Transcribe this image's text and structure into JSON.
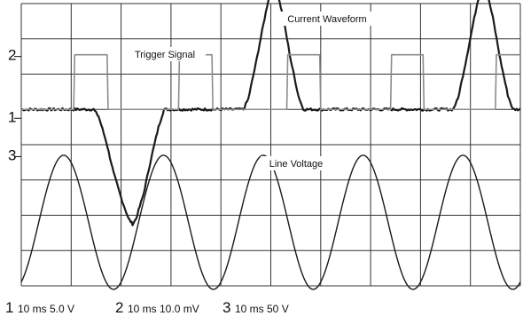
{
  "chart_data": {
    "type": "line",
    "title": "",
    "xlabel": "",
    "ylabel": "",
    "grid": true,
    "grid_divisions": {
      "horizontal": 10,
      "vertical": 8
    },
    "x": {
      "unit": "ms",
      "range": [
        0,
        100
      ],
      "per_division": 10
    },
    "channel_markers": [
      "2",
      "1",
      "3"
    ],
    "settings": [
      {
        "channel": "1",
        "text": "10 ms 5.0 V"
      },
      {
        "channel": "2",
        "text": "10 ms 10.0 mV"
      },
      {
        "channel": "3",
        "text": "10 ms 50 V"
      }
    ],
    "series": [
      {
        "name": "Current Waveform",
        "channel": "1",
        "color": "#1a1a1a",
        "baseline_div": 5.0,
        "y_unit": "div",
        "points": [
          [
            0,
            0
          ],
          [
            14.5,
            0
          ],
          [
            15.5,
            -0.2
          ],
          [
            17,
            -0.9
          ],
          [
            18.5,
            -1.8
          ],
          [
            20,
            -2.5
          ],
          [
            21.5,
            -3.1
          ],
          [
            22.3,
            -3.25
          ],
          [
            23,
            -3.1
          ],
          [
            24.5,
            -2.4
          ],
          [
            26,
            -1.4
          ],
          [
            27.5,
            -0.5
          ],
          [
            28.6,
            0
          ],
          [
            44.5,
            0
          ],
          [
            45.5,
            0.3
          ],
          [
            47,
            1.3
          ],
          [
            48.5,
            2.4
          ],
          [
            49.5,
            3.1
          ],
          [
            50.5,
            3.4
          ],
          [
            51.5,
            3.2
          ],
          [
            52.5,
            2.6
          ],
          [
            54,
            1.4
          ],
          [
            55.5,
            0.4
          ],
          [
            56.5,
            0
          ],
          [
            86.5,
            0
          ],
          [
            87.5,
            0.3
          ],
          [
            89,
            1.3
          ],
          [
            90.5,
            2.4
          ],
          [
            91.5,
            3.1
          ],
          [
            92.5,
            3.4
          ],
          [
            93.5,
            3.2
          ],
          [
            94.5,
            2.6
          ],
          [
            96,
            1.4
          ],
          [
            97.5,
            0.4
          ],
          [
            98.5,
            0
          ],
          [
            100,
            0
          ]
        ]
      },
      {
        "name": "Trigger Signal",
        "channel": "2",
        "color": "#8c8c8c",
        "baseline_div": 5.0,
        "y_unit": "div",
        "points": [
          [
            0,
            0
          ],
          [
            10.5,
            0
          ],
          [
            10.7,
            1.55
          ],
          [
            17.2,
            1.55
          ],
          [
            17.4,
            0
          ],
          [
            31.5,
            0
          ],
          [
            31.7,
            1.55
          ],
          [
            38.2,
            1.55
          ],
          [
            38.4,
            0
          ],
          [
            53.2,
            0
          ],
          [
            53.4,
            1.55
          ],
          [
            59.8,
            1.55
          ],
          [
            60,
            0
          ],
          [
            74,
            0
          ],
          [
            74.2,
            1.55
          ],
          [
            80.5,
            1.55
          ],
          [
            80.7,
            0
          ],
          [
            95,
            0
          ],
          [
            95.2,
            1.55
          ],
          [
            100,
            1.55
          ]
        ]
      },
      {
        "name": "Line Voltage",
        "channel": "3",
        "color": "#1a1a1a",
        "baseline_div": 1.8,
        "amplitude_div": 1.9,
        "y_unit": "div",
        "cycles": 5,
        "phase_peak_x": 8.5
      }
    ],
    "annotations": [
      {
        "text": "Current Waveform",
        "series": "Current Waveform"
      },
      {
        "text": "Trigger Signal",
        "series": "Trigger Signal"
      },
      {
        "text": "Line Voltage",
        "series": "Line Voltage"
      }
    ]
  }
}
